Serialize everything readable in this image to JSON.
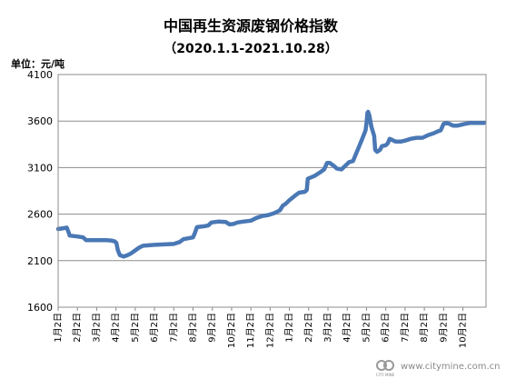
{
  "chart_data": {
    "type": "line",
    "title": "中国再生资源废钢价格指数",
    "subtitle": "（2020.1.1-2021.10.28）",
    "unit_label": "单位：元/吨",
    "ylim": [
      1600,
      4100
    ],
    "yticks": [
      1600,
      2100,
      2600,
      3100,
      3600,
      4100
    ],
    "xlim": [
      0,
      22.2
    ],
    "xticks": [
      {
        "label": "1月2日",
        "x": 0
      },
      {
        "label": "2月2日",
        "x": 1
      },
      {
        "label": "3月2日",
        "x": 2
      },
      {
        "label": "4月2日",
        "x": 3
      },
      {
        "label": "5月2日",
        "x": 4
      },
      {
        "label": "6月2日",
        "x": 5
      },
      {
        "label": "7月2日",
        "x": 6
      },
      {
        "label": "8月2日",
        "x": 7
      },
      {
        "label": "9月2日",
        "x": 8
      },
      {
        "label": "10月2日",
        "x": 9
      },
      {
        "label": "11月2日",
        "x": 10
      },
      {
        "label": "12月2日",
        "x": 11
      },
      {
        "label": "1月2日",
        "x": 12
      },
      {
        "label": "2月2日",
        "x": 13
      },
      {
        "label": "3月2日",
        "x": 14
      },
      {
        "label": "4月2日",
        "x": 15
      },
      {
        "label": "5月2日",
        "x": 16
      },
      {
        "label": "6月2日",
        "x": 17
      },
      {
        "label": "7月2日",
        "x": 18
      },
      {
        "label": "8月2日",
        "x": 19
      },
      {
        "label": "9月2日",
        "x": 20
      },
      {
        "label": "10月2日",
        "x": 21
      }
    ],
    "grid": "horizontal",
    "legend": "none",
    "series": [
      {
        "color": "#4a78b5",
        "points": [
          [
            0.0,
            2440
          ],
          [
            0.3,
            2450
          ],
          [
            0.45,
            2455
          ],
          [
            0.55,
            2400
          ],
          [
            0.6,
            2370
          ],
          [
            1.0,
            2360
          ],
          [
            1.3,
            2350
          ],
          [
            1.45,
            2320
          ],
          [
            2.0,
            2320
          ],
          [
            2.5,
            2320
          ],
          [
            2.8,
            2315
          ],
          [
            2.95,
            2305
          ],
          [
            3.02,
            2290
          ],
          [
            3.1,
            2210
          ],
          [
            3.2,
            2160
          ],
          [
            3.4,
            2145
          ],
          [
            3.6,
            2160
          ],
          [
            3.8,
            2180
          ],
          [
            4.0,
            2210
          ],
          [
            4.2,
            2240
          ],
          [
            4.4,
            2260
          ],
          [
            4.7,
            2265
          ],
          [
            5.0,
            2270
          ],
          [
            5.5,
            2275
          ],
          [
            6.0,
            2280
          ],
          [
            6.3,
            2300
          ],
          [
            6.5,
            2330
          ],
          [
            7.0,
            2350
          ],
          [
            7.1,
            2400
          ],
          [
            7.2,
            2460
          ],
          [
            7.6,
            2470
          ],
          [
            7.8,
            2480
          ],
          [
            7.95,
            2510
          ],
          [
            8.3,
            2520
          ],
          [
            8.7,
            2515
          ],
          [
            8.9,
            2490
          ],
          [
            9.1,
            2495
          ],
          [
            9.3,
            2510
          ],
          [
            9.6,
            2520
          ],
          [
            10.0,
            2530
          ],
          [
            10.3,
            2560
          ],
          [
            10.6,
            2580
          ],
          [
            10.9,
            2590
          ],
          [
            11.2,
            2610
          ],
          [
            11.5,
            2640
          ],
          [
            11.65,
            2690
          ],
          [
            11.8,
            2710
          ],
          [
            12.0,
            2750
          ],
          [
            12.3,
            2800
          ],
          [
            12.5,
            2830
          ],
          [
            12.8,
            2840
          ],
          [
            12.9,
            2860
          ],
          [
            12.95,
            2980
          ],
          [
            13.3,
            3010
          ],
          [
            13.6,
            3050
          ],
          [
            13.8,
            3080
          ],
          [
            13.95,
            3150
          ],
          [
            14.1,
            3150
          ],
          [
            14.3,
            3120
          ],
          [
            14.45,
            3090
          ],
          [
            14.7,
            3080
          ],
          [
            14.9,
            3120
          ],
          [
            15.1,
            3160
          ],
          [
            15.3,
            3170
          ],
          [
            15.4,
            3220
          ],
          [
            15.6,
            3320
          ],
          [
            15.8,
            3420
          ],
          [
            15.95,
            3500
          ],
          [
            16.0,
            3580
          ],
          [
            16.05,
            3690
          ],
          [
            16.08,
            3700
          ],
          [
            16.15,
            3660
          ],
          [
            16.25,
            3540
          ],
          [
            16.4,
            3440
          ],
          [
            16.45,
            3290
          ],
          [
            16.55,
            3270
          ],
          [
            16.7,
            3290
          ],
          [
            16.8,
            3330
          ],
          [
            17.0,
            3340
          ],
          [
            17.1,
            3360
          ],
          [
            17.2,
            3410
          ],
          [
            17.3,
            3400
          ],
          [
            17.5,
            3380
          ],
          [
            17.8,
            3380
          ],
          [
            18.0,
            3390
          ],
          [
            18.3,
            3410
          ],
          [
            18.6,
            3420
          ],
          [
            18.9,
            3420
          ],
          [
            19.2,
            3450
          ],
          [
            19.5,
            3470
          ],
          [
            19.7,
            3490
          ],
          [
            19.85,
            3500
          ],
          [
            20.0,
            3570
          ],
          [
            20.15,
            3580
          ],
          [
            20.3,
            3570
          ],
          [
            20.5,
            3550
          ],
          [
            20.7,
            3550
          ],
          [
            20.9,
            3560
          ],
          [
            21.1,
            3570
          ],
          [
            21.4,
            3580
          ],
          [
            21.7,
            3580
          ],
          [
            22.1,
            3580
          ]
        ]
      }
    ]
  },
  "watermark": {
    "logo_text": "CITY MINE",
    "site": "www.citymine.com.cn"
  }
}
